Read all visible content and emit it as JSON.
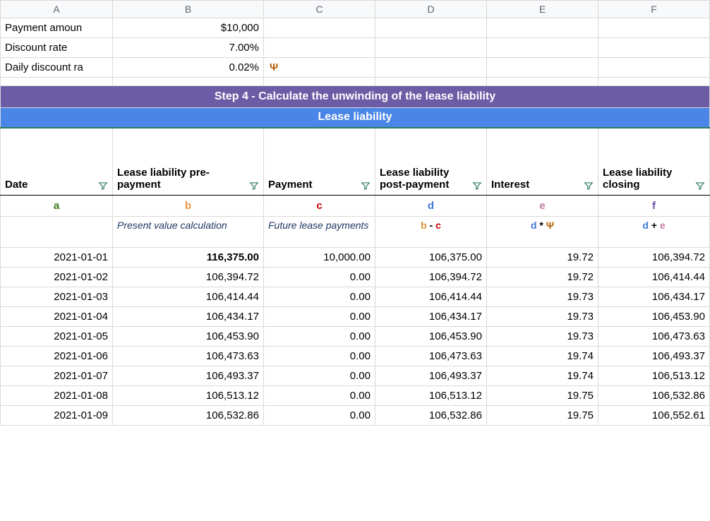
{
  "columns": [
    "A",
    "B",
    "C",
    "D",
    "E",
    "F"
  ],
  "top_rows": [
    {
      "label": "Payment amoun",
      "value": "$10,000",
      "note": ""
    },
    {
      "label": "Discount rate",
      "value": "7.00%",
      "note": ""
    },
    {
      "label": "Daily discount ra",
      "value": "0.02%",
      "note": "Ψ"
    }
  ],
  "band_title": "Step 4 - Calculate the unwinding of the lease liability",
  "band_subtitle": "Lease liability",
  "headers": {
    "a": "Date",
    "b": "Lease liability pre-payment",
    "c": "Payment",
    "d": "Lease liability post-payment",
    "e": "Interest",
    "f": "Lease liability closing"
  },
  "letters": {
    "a": {
      "text": "a",
      "color": "c-green"
    },
    "b": {
      "text": "b",
      "color": "c-orange"
    },
    "c": {
      "text": "c",
      "color": "c-red"
    },
    "d": {
      "text": "d",
      "color": "c-blue"
    },
    "e": {
      "text": "e",
      "color": "c-pink"
    },
    "f": {
      "text": "f",
      "color": "c-purple"
    }
  },
  "hints": {
    "b": "Present value calculation",
    "c": "Future lease payments",
    "d_parts": [
      {
        "text": "b",
        "cls": "c-orange"
      },
      {
        "text": " - ",
        "cls": "minus"
      },
      {
        "text": "c",
        "cls": "c-red"
      }
    ],
    "e_parts": [
      {
        "text": "d",
        "cls": "c-blue"
      },
      {
        "text": " * ",
        "cls": "star"
      },
      {
        "text": "Ψ",
        "cls": "psi"
      }
    ],
    "f_parts": [
      {
        "text": "d",
        "cls": "c-blue"
      },
      {
        "text": "  + ",
        "cls": "plus"
      },
      {
        "text": "e",
        "cls": "c-pink"
      }
    ]
  },
  "rows": [
    {
      "date": "2021-01-01",
      "b": "116,375.00",
      "b_bold": true,
      "c": "10,000.00",
      "d": "106,375.00",
      "e": "19.72",
      "f": "106,394.72"
    },
    {
      "date": "2021-01-02",
      "b": "106,394.72",
      "c": "0.00",
      "d": "106,394.72",
      "e": "19.72",
      "f": "106,414.44"
    },
    {
      "date": "2021-01-03",
      "b": "106,414.44",
      "c": "0.00",
      "d": "106,414.44",
      "e": "19.73",
      "f": "106,434.17"
    },
    {
      "date": "2021-01-04",
      "b": "106,434.17",
      "c": "0.00",
      "d": "106,434.17",
      "e": "19.73",
      "f": "106,453.90"
    },
    {
      "date": "2021-01-05",
      "b": "106,453.90",
      "c": "0.00",
      "d": "106,453.90",
      "e": "19.73",
      "f": "106,473.63"
    },
    {
      "date": "2021-01-06",
      "b": "106,473.63",
      "c": "0.00",
      "d": "106,473.63",
      "e": "19.74",
      "f": "106,493.37"
    },
    {
      "date": "2021-01-07",
      "b": "106,493.37",
      "c": "0.00",
      "d": "106,493.37",
      "e": "19.74",
      "f": "106,513.12"
    },
    {
      "date": "2021-01-08",
      "b": "106,513.12",
      "c": "0.00",
      "d": "106,513.12",
      "e": "19.75",
      "f": "106,532.86"
    },
    {
      "date": "2021-01-09",
      "b": "106,532.86",
      "c": "0.00",
      "d": "106,532.86",
      "e": "19.75",
      "f": "106,552.61"
    }
  ]
}
